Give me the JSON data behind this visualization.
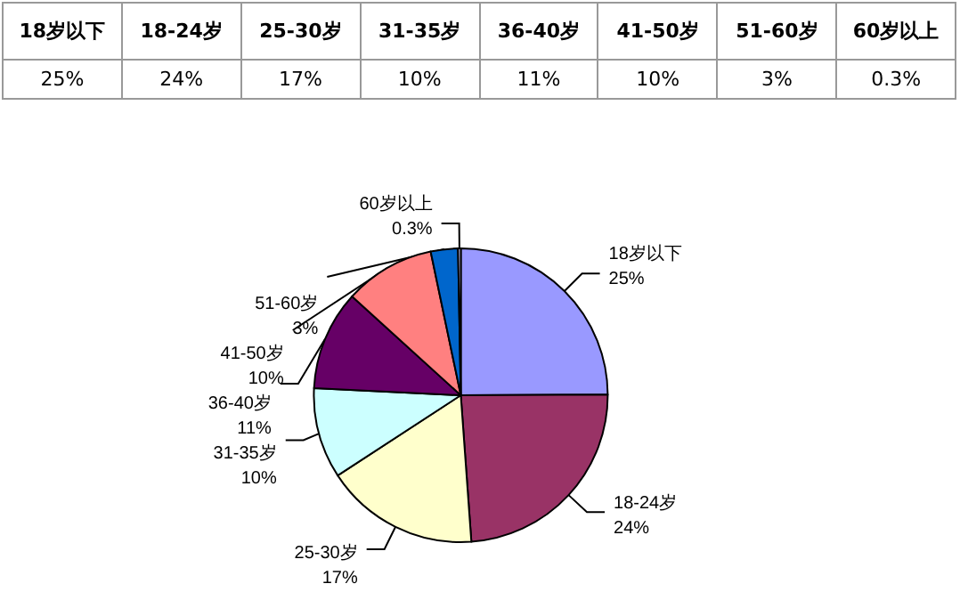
{
  "chart_data": {
    "type": "pie",
    "categories": [
      "18岁以下",
      "18-24岁",
      "25-30岁",
      "31-35岁",
      "36-40岁",
      "41-50岁",
      "51-60岁",
      "60岁以上"
    ],
    "values": [
      25,
      24,
      17,
      10,
      11,
      10,
      3,
      0.3
    ],
    "value_labels": [
      "25%",
      "24%",
      "17%",
      "10%",
      "11%",
      "10%",
      "3%",
      "0.3%"
    ],
    "colors": [
      "#9999ff",
      "#993366",
      "#ffffcc",
      "#ccffff",
      "#660066",
      "#ff8080",
      "#0066cc",
      "#ccccff"
    ],
    "data_labels": true,
    "legend": false
  }
}
